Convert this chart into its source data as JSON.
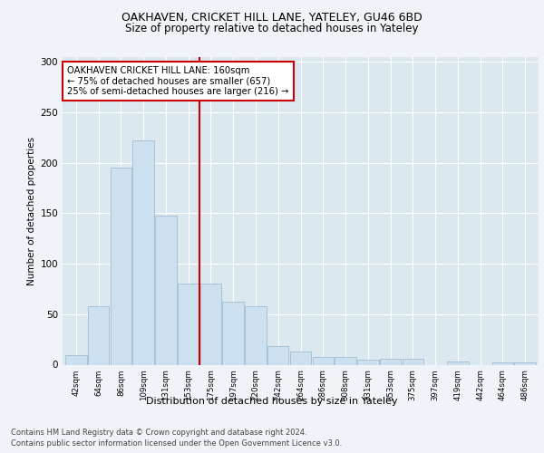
{
  "title1": "OAKHAVEN, CRICKET HILL LANE, YATELEY, GU46 6BD",
  "title2": "Size of property relative to detached houses in Yateley",
  "xlabel": "Distribution of detached houses by size in Yateley",
  "ylabel": "Number of detached properties",
  "categories": [
    "42sqm",
    "64sqm",
    "86sqm",
    "109sqm",
    "131sqm",
    "153sqm",
    "175sqm",
    "197sqm",
    "220sqm",
    "242sqm",
    "264sqm",
    "286sqm",
    "308sqm",
    "331sqm",
    "353sqm",
    "375sqm",
    "397sqm",
    "419sqm",
    "442sqm",
    "464sqm",
    "486sqm"
  ],
  "values": [
    9,
    58,
    195,
    222,
    148,
    80,
    80,
    62,
    58,
    18,
    13,
    8,
    8,
    5,
    6,
    6,
    0,
    3,
    0,
    2,
    2
  ],
  "bar_color": "#cde0ef",
  "bar_edge_color": "#a0bdd0",
  "vline_x": 5.5,
  "vline_color": "#cc0000",
  "annotation_text": "OAKHAVEN CRICKET HILL LANE: 160sqm\n← 75% of detached houses are smaller (657)\n25% of semi-detached houses are larger (216) →",
  "annotation_box_edge": "#cc0000",
  "ylim": [
    0,
    305
  ],
  "yticks": [
    0,
    50,
    100,
    150,
    200,
    250,
    300
  ],
  "footer1": "Contains HM Land Registry data © Crown copyright and database right 2024.",
  "footer2": "Contains public sector information licensed under the Open Government Licence v3.0.",
  "bg_color": "#f0f4f8",
  "plot_bg_color": "#dce8f0"
}
